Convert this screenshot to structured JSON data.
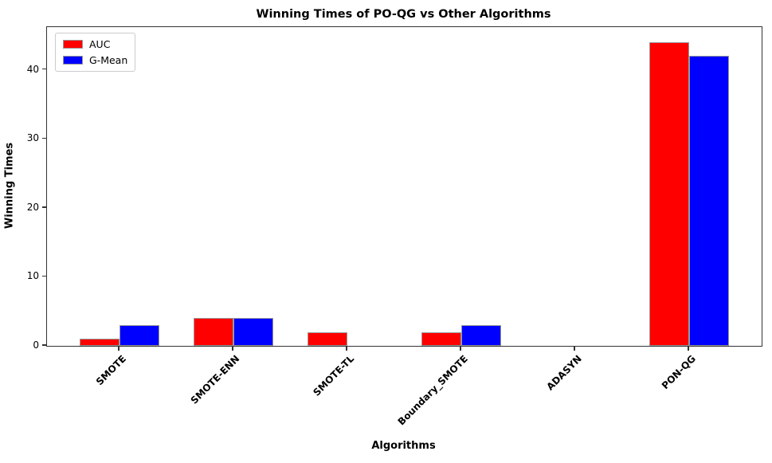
{
  "chart_data": {
    "type": "bar",
    "title": "Winning Times of PO-QG vs Other Algorithms",
    "xlabel": "Algorithms",
    "ylabel": "Winning Times",
    "categories": [
      "SMOTE",
      "SMOTE-ENN",
      "SMOTE-TL",
      "Boundary_SMOTE",
      "ADASYN",
      "PON-QG"
    ],
    "series": [
      {
        "name": "AUC",
        "color": "#ff0000",
        "values": [
          1,
          4,
          2,
          2,
          0,
          44
        ]
      },
      {
        "name": "G-Mean",
        "color": "#0000ff",
        "values": [
          3,
          4,
          0,
          3,
          0,
          42
        ]
      }
    ],
    "bar_width": 0.35,
    "bar_edge_color": "#999999",
    "xlim": [
      -0.635,
      5.635
    ],
    "ylim": [
      0,
      46.2
    ],
    "yticks": [
      0,
      10,
      20,
      30,
      40
    ],
    "xtick_rotation": 45,
    "grid": false,
    "legend_position": "upper-left"
  }
}
